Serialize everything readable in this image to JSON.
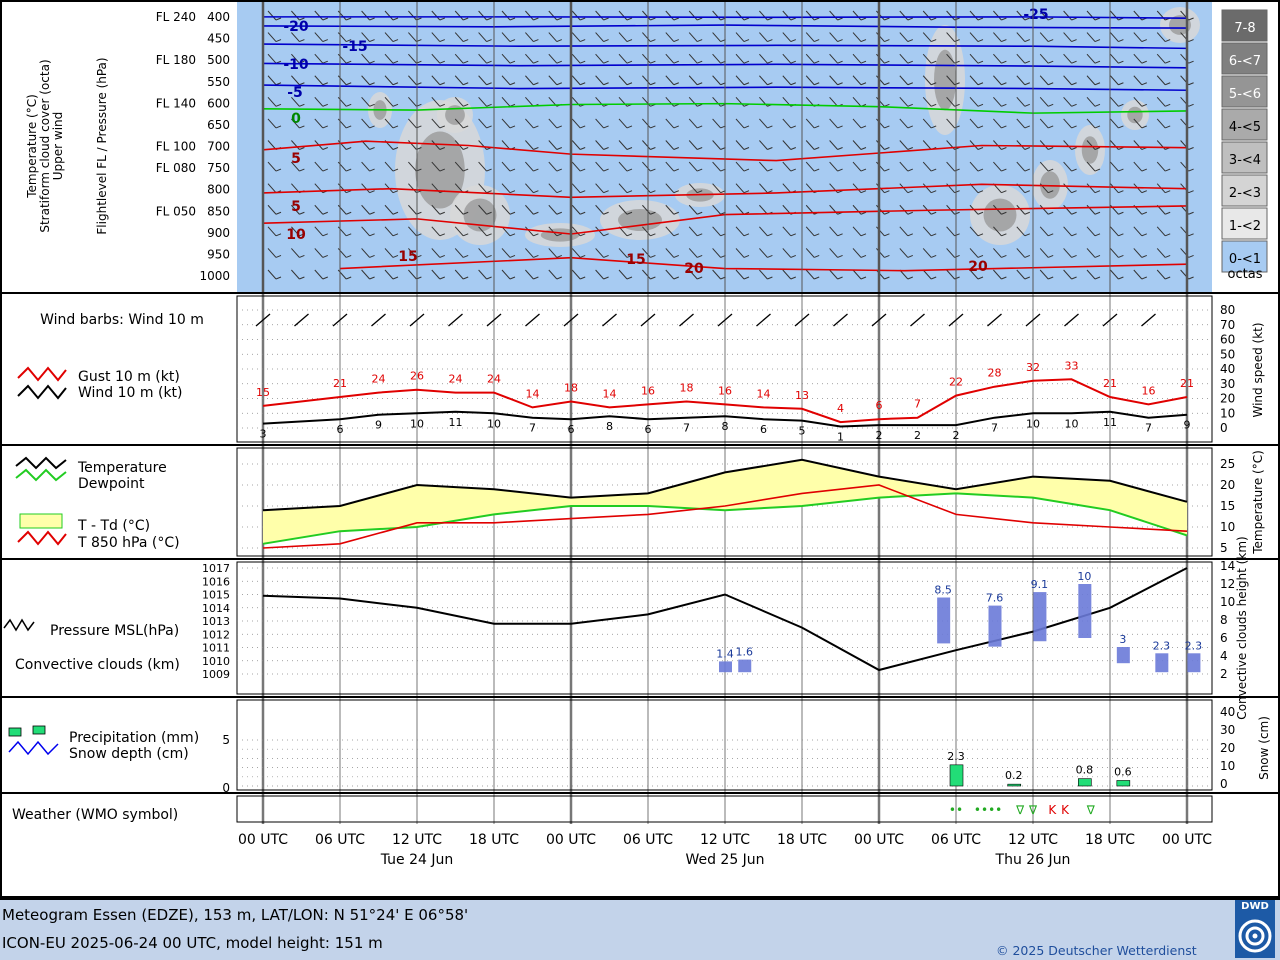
{
  "header": {
    "left_labels": [
      "Temperature (°C)",
      "Stratiform cloud cover (octa)",
      "Upper wind"
    ],
    "axis_label": "Flightlevel FL / Pressure (hPa)"
  },
  "upper": {
    "levels": [
      {
        "fl": "FL 240",
        "p": "400"
      },
      {
        "fl": "",
        "p": "450"
      },
      {
        "fl": "FL 180",
        "p": "500"
      },
      {
        "fl": "",
        "p": "550"
      },
      {
        "fl": "FL 140",
        "p": "600"
      },
      {
        "fl": "",
        "p": "650"
      },
      {
        "fl": "FL 100",
        "p": "700"
      },
      {
        "fl": "FL 080",
        "p": "750"
      },
      {
        "fl": "",
        "p": "800"
      },
      {
        "fl": "FL 050",
        "p": "850"
      },
      {
        "fl": "",
        "p": "900"
      },
      {
        "fl": "",
        "p": "950"
      },
      {
        "fl": "",
        "p": "1000"
      }
    ],
    "legend": [
      "7-8",
      "6-<7",
      "5-<6",
      "4-<5",
      "3-<4",
      "2-<3",
      "1-<2",
      "0-<1",
      "octas"
    ],
    "isotherm_labels": [
      "-25",
      "-20",
      "-15",
      "-10",
      "-5",
      "0",
      "5",
      "5",
      "10",
      "15",
      "15",
      "20",
      "20"
    ]
  },
  "wind": {
    "title": "Wind barbs: Wind 10 m",
    "legend_gust": "Gust 10 m (kt)",
    "legend_wind": "Wind 10 m (kt)",
    "ylabel": "Wind speed (kt)",
    "yticks": [
      "80",
      "70",
      "60",
      "50",
      "40",
      "30",
      "20",
      "10",
      "0"
    ]
  },
  "temp": {
    "legend_temp": "Temperature",
    "legend_dew": "Dewpoint",
    "legend_diff": "T - Td (°C)",
    "legend_t850": "T 850 hPa (°C)",
    "ylabel": "Temperature (°C)",
    "yticks": [
      "25",
      "20",
      "15",
      "10",
      "5"
    ]
  },
  "pressure": {
    "legend_p": "Pressure MSL(hPa)",
    "legend_c": "Convective clouds (km)",
    "yleft": [
      "1017",
      "1016",
      "1015",
      "1014",
      "1013",
      "1012",
      "1011",
      "1010",
      "1009"
    ],
    "yright": [
      "14",
      "12",
      "10",
      "8",
      "6",
      "4",
      "2"
    ],
    "ylabel_right": "Convective clouds height (km)",
    "bar_labels": [
      "1.4",
      "1.6",
      "8.5",
      "7.6",
      "9.1",
      "10",
      "3",
      "2.3",
      "2.3"
    ]
  },
  "precip": {
    "legend_p": "Precipitation (mm)",
    "legend_s": "Snow depth (cm)",
    "yleft": [
      "5",
      "0"
    ],
    "yright": [
      "40",
      "30",
      "20",
      "10",
      "0"
    ],
    "ylabel_right": "Snow (cm)",
    "bar_labels": [
      "2.3",
      "0.2",
      "0.8",
      "0.6"
    ]
  },
  "weather": {
    "title": "Weather (WMO symbol)",
    "symbols": [
      "••",
      "••••",
      "∇",
      "∇",
      "K",
      "K",
      "∇"
    ]
  },
  "time_axis": {
    "ticks": [
      "00 UTC",
      "06 UTC",
      "12 UTC",
      "18 UTC",
      "00 UTC",
      "06 UTC",
      "12 UTC",
      "18 UTC",
      "00 UTC",
      "06 UTC",
      "12 UTC",
      "18 UTC",
      "00 UTC"
    ],
    "days": [
      "Tue 24 Jun",
      "Wed 25 Jun",
      "Thu 26 Jun"
    ]
  },
  "footer": {
    "line1": "Meteogram Essen (EDZE), 153 m, LAT/LON: N 51°24' E 06°58'",
    "line2": "ICON-EU 2025-06-24 00 UTC, model height: 151 m",
    "copyright": "© 2025 Deutscher Wetterdienst",
    "logo_text": "DWD"
  },
  "chart_data": [
    {
      "type": "line",
      "title": "Wind barbs: Wind 10 m",
      "ylabel": "Wind speed (kt)",
      "ylim": [
        0,
        80
      ],
      "x": [
        "Tue 24 Jun 00 UTC",
        "Tue 24 Jun 06 UTC",
        "Tue 24 Jun 09 UTC",
        "Tue 24 Jun 12 UTC",
        "Tue 24 Jun 15 UTC",
        "Tue 24 Jun 18 UTC",
        "Tue 24 Jun 21 UTC",
        "Wed 25 Jun 00 UTC",
        "Wed 25 Jun 03 UTC",
        "Wed 25 Jun 06 UTC",
        "Wed 25 Jun 09 UTC",
        "Wed 25 Jun 12 UTC",
        "Wed 25 Jun 15 UTC",
        "Wed 25 Jun 18 UTC",
        "Wed 25 Jun 21 UTC",
        "Thu 26 Jun 00 UTC",
        "Thu 26 Jun 03 UTC",
        "Thu 26 Jun 06 UTC",
        "Thu 26 Jun 09 UTC",
        "Thu 26 Jun 12 UTC",
        "Thu 26 Jun 15 UTC",
        "Thu 26 Jun 18 UTC",
        "Thu 26 Jun 21 UTC",
        "Fri 27 Jun 00 UTC"
      ],
      "series": [
        {
          "name": "Gust 10 m (kt)",
          "values": [
            15,
            21,
            24,
            26,
            24,
            24,
            14,
            18,
            14,
            16,
            18,
            16,
            14,
            13,
            4,
            6,
            7,
            22,
            28,
            32,
            33,
            21,
            16,
            21
          ]
        },
        {
          "name": "Wind 10 m (kt)",
          "values": [
            3,
            6,
            9,
            10,
            11,
            10,
            7,
            6,
            8,
            6,
            7,
            8,
            6,
            5,
            1,
            2,
            2,
            2,
            7,
            10,
            10,
            11,
            7,
            9
          ]
        }
      ]
    },
    {
      "type": "area",
      "ylabel": "Temperature (°C)",
      "ylim": [
        4,
        28
      ],
      "x_hours": [
        0,
        6,
        12,
        18,
        24,
        30,
        36,
        42,
        48,
        54,
        60,
        66,
        72
      ],
      "series": [
        {
          "name": "Temperature",
          "values": [
            14,
            15,
            20,
            19,
            17,
            18,
            23,
            26,
            22,
            19,
            22,
            21,
            16
          ]
        },
        {
          "name": "Dewpoint",
          "values": [
            6,
            9,
            10,
            13,
            15,
            15,
            14,
            15,
            17,
            18,
            17,
            14,
            8
          ]
        },
        {
          "name": "T 850 hPa (°C)",
          "values": [
            5,
            6,
            11,
            11,
            12,
            13,
            15,
            18,
            20,
            13,
            11,
            10,
            9
          ]
        }
      ]
    },
    {
      "type": "line",
      "ylabel": "Pressure MSL(hPa)",
      "ylim": [
        1009,
        1017
      ],
      "x_hours": [
        0,
        6,
        12,
        18,
        24,
        30,
        36,
        42,
        48,
        54,
        60,
        66,
        72
      ],
      "series": [
        {
          "name": "Pressure MSL(hPa)",
          "values": [
            1014.9,
            1014.7,
            1014.0,
            1012.8,
            1012.8,
            1013.5,
            1015.0,
            1012.5,
            1009.3,
            1010.8,
            1012.2,
            1014.0,
            1017.0
          ]
        }
      ]
    },
    {
      "type": "bar",
      "ylabel": "Convective clouds height (km)",
      "categories": [
        "Wed 25 Jun 12 UTC",
        "Wed 25 Jun 13 UTC",
        "Thu 26 Jun 02 UTC",
        "Thu 26 Jun 06 UTC",
        "Thu 26 Jun 08 UTC",
        "Thu 26 Jun 12 UTC",
        "Thu 26 Jun 15 UTC",
        "Thu 26 Jun 19 UTC",
        "Thu 26 Jun 21 UTC"
      ],
      "values": [
        1.4,
        1.6,
        8.5,
        7.6,
        9.1,
        10,
        3,
        2.3,
        2.3
      ]
    },
    {
      "type": "bar",
      "ylabel": "Precipitation (mm)",
      "categories": [
        "Thu 26 Jun 06 UTC",
        "Thu 26 Jun 09 UTC",
        "Thu 26 Jun 12 UTC",
        "Thu 26 Jun 15 UTC"
      ],
      "values": [
        2.3,
        0.2,
        0.8,
        0.6
      ]
    }
  ]
}
